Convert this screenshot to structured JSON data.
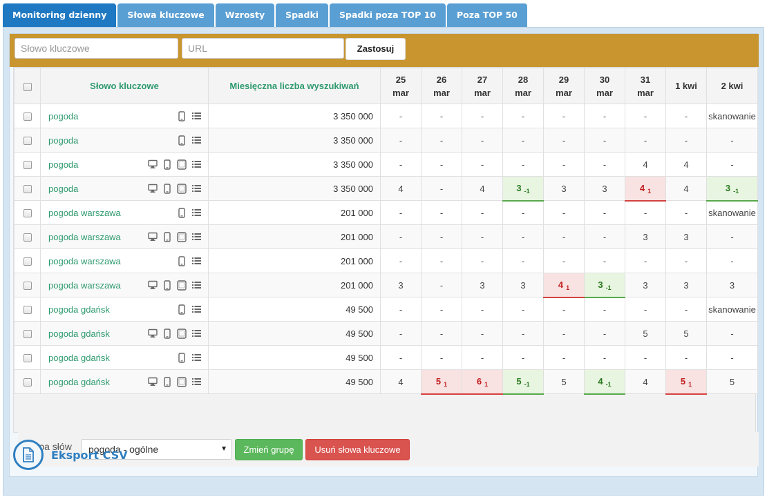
{
  "tabs": [
    {
      "label": "Monitoring dzienny",
      "active": true
    },
    {
      "label": "Słowa kluczowe",
      "active": false
    },
    {
      "label": "Wzrosty",
      "active": false
    },
    {
      "label": "Spadki",
      "active": false
    },
    {
      "label": "Spadki poza TOP 10",
      "active": false
    },
    {
      "label": "Poza TOP 50",
      "active": false
    }
  ],
  "filter": {
    "keyword_placeholder": "Słowo kluczowe",
    "url_placeholder": "URL",
    "apply_label": "Zastosuj"
  },
  "table": {
    "col_keyword": "Słowo kluczowe",
    "col_volume": "Miesięczna liczba wyszukiwań",
    "dates": [
      {
        "day": "25",
        "month": "mar"
      },
      {
        "day": "26",
        "month": "mar"
      },
      {
        "day": "27",
        "month": "mar"
      },
      {
        "day": "28",
        "month": "mar"
      },
      {
        "day": "29",
        "month": "mar"
      },
      {
        "day": "30",
        "month": "mar"
      },
      {
        "day": "31",
        "month": "mar"
      },
      {
        "day": "1 kwi",
        "month": ""
      },
      {
        "day": "2 kwi",
        "month": ""
      }
    ],
    "rows": [
      {
        "keyword": "pogoda",
        "devices": [
          "mobile-icon",
          "list-icon"
        ],
        "volume": "3 350 000",
        "positions": [
          {
            "v": "-"
          },
          {
            "v": "-"
          },
          {
            "v": "-"
          },
          {
            "v": "-"
          },
          {
            "v": "-"
          },
          {
            "v": "-"
          },
          {
            "v": "-"
          },
          {
            "v": "-"
          },
          {
            "v": "skanowanie",
            "scan": true
          }
        ]
      },
      {
        "keyword": "pogoda",
        "devices": [
          "mobile-icon",
          "list-icon"
        ],
        "volume": "3 350 000",
        "positions": [
          {
            "v": "-"
          },
          {
            "v": "-"
          },
          {
            "v": "-"
          },
          {
            "v": "-"
          },
          {
            "v": "-"
          },
          {
            "v": "-"
          },
          {
            "v": "-"
          },
          {
            "v": "-"
          },
          {
            "v": "-"
          }
        ]
      },
      {
        "keyword": "pogoda",
        "devices": [
          "desktop-icon",
          "mobile-icon",
          "tablet-icon",
          "list-icon"
        ],
        "volume": "3 350 000",
        "positions": [
          {
            "v": "-"
          },
          {
            "v": "-"
          },
          {
            "v": "-"
          },
          {
            "v": "-"
          },
          {
            "v": "-"
          },
          {
            "v": "-"
          },
          {
            "v": "4"
          },
          {
            "v": "4"
          },
          {
            "v": "-"
          }
        ]
      },
      {
        "keyword": "pogoda",
        "devices": [
          "desktop-icon",
          "mobile-icon",
          "tablet-icon",
          "list-icon"
        ],
        "volume": "3 350 000",
        "positions": [
          {
            "v": "4"
          },
          {
            "v": "-"
          },
          {
            "v": "4"
          },
          {
            "v": "3",
            "chg": "-1",
            "trend": "up"
          },
          {
            "v": "3"
          },
          {
            "v": "3"
          },
          {
            "v": "4",
            "chg": "1",
            "trend": "down"
          },
          {
            "v": "4"
          },
          {
            "v": "3",
            "chg": "-1",
            "trend": "up"
          }
        ]
      },
      {
        "keyword": "pogoda warszawa",
        "devices": [
          "mobile-icon",
          "list-icon"
        ],
        "volume": "201 000",
        "positions": [
          {
            "v": "-"
          },
          {
            "v": "-"
          },
          {
            "v": "-"
          },
          {
            "v": "-"
          },
          {
            "v": "-"
          },
          {
            "v": "-"
          },
          {
            "v": "-"
          },
          {
            "v": "-"
          },
          {
            "v": "skanowanie",
            "scan": true
          }
        ]
      },
      {
        "keyword": "pogoda warszawa",
        "devices": [
          "desktop-icon",
          "mobile-icon",
          "tablet-icon",
          "list-icon"
        ],
        "volume": "201 000",
        "positions": [
          {
            "v": "-"
          },
          {
            "v": "-"
          },
          {
            "v": "-"
          },
          {
            "v": "-"
          },
          {
            "v": "-"
          },
          {
            "v": "-"
          },
          {
            "v": "3"
          },
          {
            "v": "3"
          },
          {
            "v": "-"
          }
        ]
      },
      {
        "keyword": "pogoda warszawa",
        "devices": [
          "mobile-icon",
          "list-icon"
        ],
        "volume": "201 000",
        "positions": [
          {
            "v": "-"
          },
          {
            "v": "-"
          },
          {
            "v": "-"
          },
          {
            "v": "-"
          },
          {
            "v": "-"
          },
          {
            "v": "-"
          },
          {
            "v": "-"
          },
          {
            "v": "-"
          },
          {
            "v": "-"
          }
        ]
      },
      {
        "keyword": "pogoda warszawa",
        "devices": [
          "desktop-icon",
          "mobile-icon",
          "tablet-icon",
          "list-icon"
        ],
        "volume": "201 000",
        "positions": [
          {
            "v": "3"
          },
          {
            "v": "-"
          },
          {
            "v": "3"
          },
          {
            "v": "3"
          },
          {
            "v": "4",
            "chg": "1",
            "trend": "down"
          },
          {
            "v": "3",
            "chg": "-1",
            "trend": "up"
          },
          {
            "v": "3"
          },
          {
            "v": "3"
          },
          {
            "v": "3"
          }
        ]
      },
      {
        "keyword": "pogoda gdańsk",
        "devices": [
          "mobile-icon",
          "list-icon"
        ],
        "volume": "49 500",
        "positions": [
          {
            "v": "-"
          },
          {
            "v": "-"
          },
          {
            "v": "-"
          },
          {
            "v": "-"
          },
          {
            "v": "-"
          },
          {
            "v": "-"
          },
          {
            "v": "-"
          },
          {
            "v": "-"
          },
          {
            "v": "skanowanie",
            "scan": true
          }
        ]
      },
      {
        "keyword": "pogoda gdańsk",
        "devices": [
          "desktop-icon",
          "mobile-icon",
          "tablet-icon",
          "list-icon"
        ],
        "volume": "49 500",
        "positions": [
          {
            "v": "-"
          },
          {
            "v": "-"
          },
          {
            "v": "-"
          },
          {
            "v": "-"
          },
          {
            "v": "-"
          },
          {
            "v": "-"
          },
          {
            "v": "5"
          },
          {
            "v": "5"
          },
          {
            "v": "-"
          }
        ]
      },
      {
        "keyword": "pogoda gdańsk",
        "devices": [
          "mobile-icon",
          "list-icon"
        ],
        "volume": "49 500",
        "positions": [
          {
            "v": "-"
          },
          {
            "v": "-"
          },
          {
            "v": "-"
          },
          {
            "v": "-"
          },
          {
            "v": "-"
          },
          {
            "v": "-"
          },
          {
            "v": "-"
          },
          {
            "v": "-"
          },
          {
            "v": "-"
          }
        ]
      },
      {
        "keyword": "pogoda gdańsk",
        "devices": [
          "desktop-icon",
          "mobile-icon",
          "tablet-icon",
          "list-icon"
        ],
        "volume": "49 500",
        "positions": [
          {
            "v": "4"
          },
          {
            "v": "5",
            "chg": "1",
            "trend": "down"
          },
          {
            "v": "6",
            "chg": "1",
            "trend": "down"
          },
          {
            "v": "5",
            "chg": "-1",
            "trend": "up"
          },
          {
            "v": "5"
          },
          {
            "v": "4",
            "chg": "-1",
            "trend": "up"
          },
          {
            "v": "4"
          },
          {
            "v": "5",
            "chg": "1",
            "trend": "down"
          },
          {
            "v": "5"
          }
        ]
      }
    ]
  },
  "footer": {
    "group_label": "Grupa słów",
    "group_value": "pogoda - ogólne",
    "change_group_label": "Zmień grupę",
    "delete_label": "Usuń słowa kluczowe"
  },
  "export": {
    "label": "Eksport CSV"
  },
  "colors": {
    "tab_active": "#1e78c2",
    "tab": "#5a9fd4",
    "filter_bar": "#c8952f",
    "keyword_green": "#2e9a6e",
    "up": "#57a84b",
    "down": "#d44040"
  }
}
